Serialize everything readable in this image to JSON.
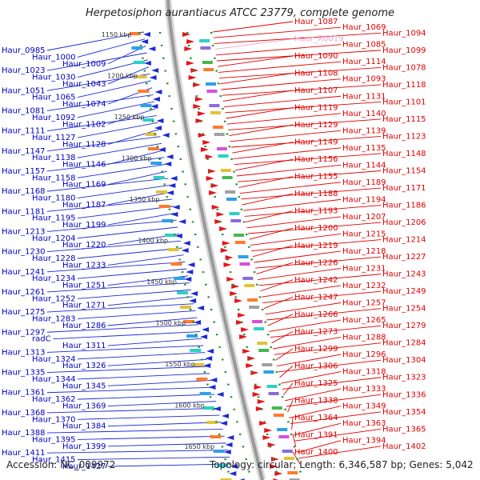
{
  "title": "Herpetosiphon aurantiacus ATCC 23779, complete genome",
  "footer": {
    "accession": "Accession: NC_009972",
    "summary": "Topology: circular; Length: 6,346,587 bp; Genes: 5,042"
  },
  "colors": {
    "forward_strand": "#e8141c",
    "reverse_strand": "#1a2bd4",
    "forward_label": "#e00000",
    "reverse_label": "#0000c0",
    "rna_label": "#f2a0d0",
    "backbone": "#999999",
    "tick": "#1f8f2f"
  },
  "kbp_ticks": [
    "1150 kbp",
    "1200 kbp",
    "1250 kbp",
    "1300 kbp",
    "1350 kbp",
    "1400 kbp",
    "1450 kbp",
    "1500 kbp",
    "1550 kbp",
    "1600 kbp",
    "1650 kbp"
  ],
  "left_labels": [
    "Haur_0985",
    "Haur_1000",
    "Haur_1009",
    "Haur_1023",
    "Haur_1030",
    "Haur_1043",
    "Haur_1051",
    "Haur_1065",
    "Haur_1074",
    "Haur_1081",
    "Haur_1092",
    "Haur_1102",
    "Haur_1111",
    "Haur_1127",
    "Haur_1128",
    "Haur_1147",
    "Haur_1138",
    "Haur_1146",
    "Haur_1157",
    "Haur_1158",
    "Haur_1169",
    "Haur_1168",
    "Haur_1180",
    "Haur_1187",
    "Haur_1181",
    "Haur_1195",
    "Haur_1199",
    "Haur_1213",
    "Haur_1204",
    "Haur_1220",
    "Haur_1230",
    "Haur_1228",
    "Haur_1233",
    "Haur_1241",
    "Haur_1234",
    "Haur_1251",
    "Haur_1261",
    "Haur_1252",
    "Haur_1271",
    "Haur_1275",
    "Haur_1283",
    "Haur_1286",
    "Haur_1297",
    "radC",
    "Haur_1311",
    "Haur_1313",
    "Haur_1324",
    "Haur_1326",
    "Haur_1335",
    "Haur_1344",
    "Haur_1345",
    "Haur_1361",
    "Haur_1362",
    "Haur_1369",
    "Haur_1368",
    "Haur_1370",
    "Haur_1384",
    "Haur_1388",
    "Haur_1395",
    "Haur_1399",
    "Haur_1411",
    "Haur_1415",
    "Haur_1427"
  ],
  "right_labels": [
    "Haur_1087",
    "Haur_1069",
    "Haur_1094",
    "Haur_R0019",
    "Haur_1085",
    "Haur_1099",
    "Haur_1090",
    "Haur_1114",
    "Haur_1078",
    "Haur_1108",
    "Haur_1093",
    "Haur_1118",
    "Haur_1107",
    "Haur_1131",
    "Haur_1101",
    "Haur_1119",
    "Haur_1140",
    "Haur_1115",
    "Haur_1129",
    "Haur_1139",
    "Haur_1123",
    "Haur_1149",
    "Haur_1135",
    "Haur_1148",
    "Haur_1156",
    "Haur_1144",
    "Haur_1154",
    "Haur_1155",
    "Haur_1189",
    "Haur_1171",
    "Haur_1188",
    "Haur_1194",
    "Haur_1186",
    "Haur_1193",
    "Haur_1207",
    "Haur_1206",
    "Haur_1200",
    "Haur_1215",
    "Haur_1214",
    "Haur_1219",
    "Haur_1218",
    "Haur_1227",
    "Haur_1226",
    "Haur_1231",
    "Haur_1243",
    "Haur_1242",
    "Haur_1232",
    "Haur_1249",
    "Haur_1247",
    "Haur_1257",
    "Haur_1254",
    "Haur_1266",
    "Haur_1265",
    "Haur_1279",
    "Haur_1273",
    "Haur_1288",
    "Haur_1284",
    "Haur_1299",
    "Haur_1296",
    "Haur_1304",
    "Haur_1306",
    "Haur_1318",
    "Haur_1323",
    "Haur_1325",
    "Haur_1333",
    "Haur_1336",
    "Haur_1338",
    "Haur_1349",
    "Haur_1354",
    "Haur_1364",
    "Haur_1363",
    "Haur_1365",
    "Haur_1391",
    "Haur_1394",
    "Haur_1402",
    "Haur_1400"
  ]
}
